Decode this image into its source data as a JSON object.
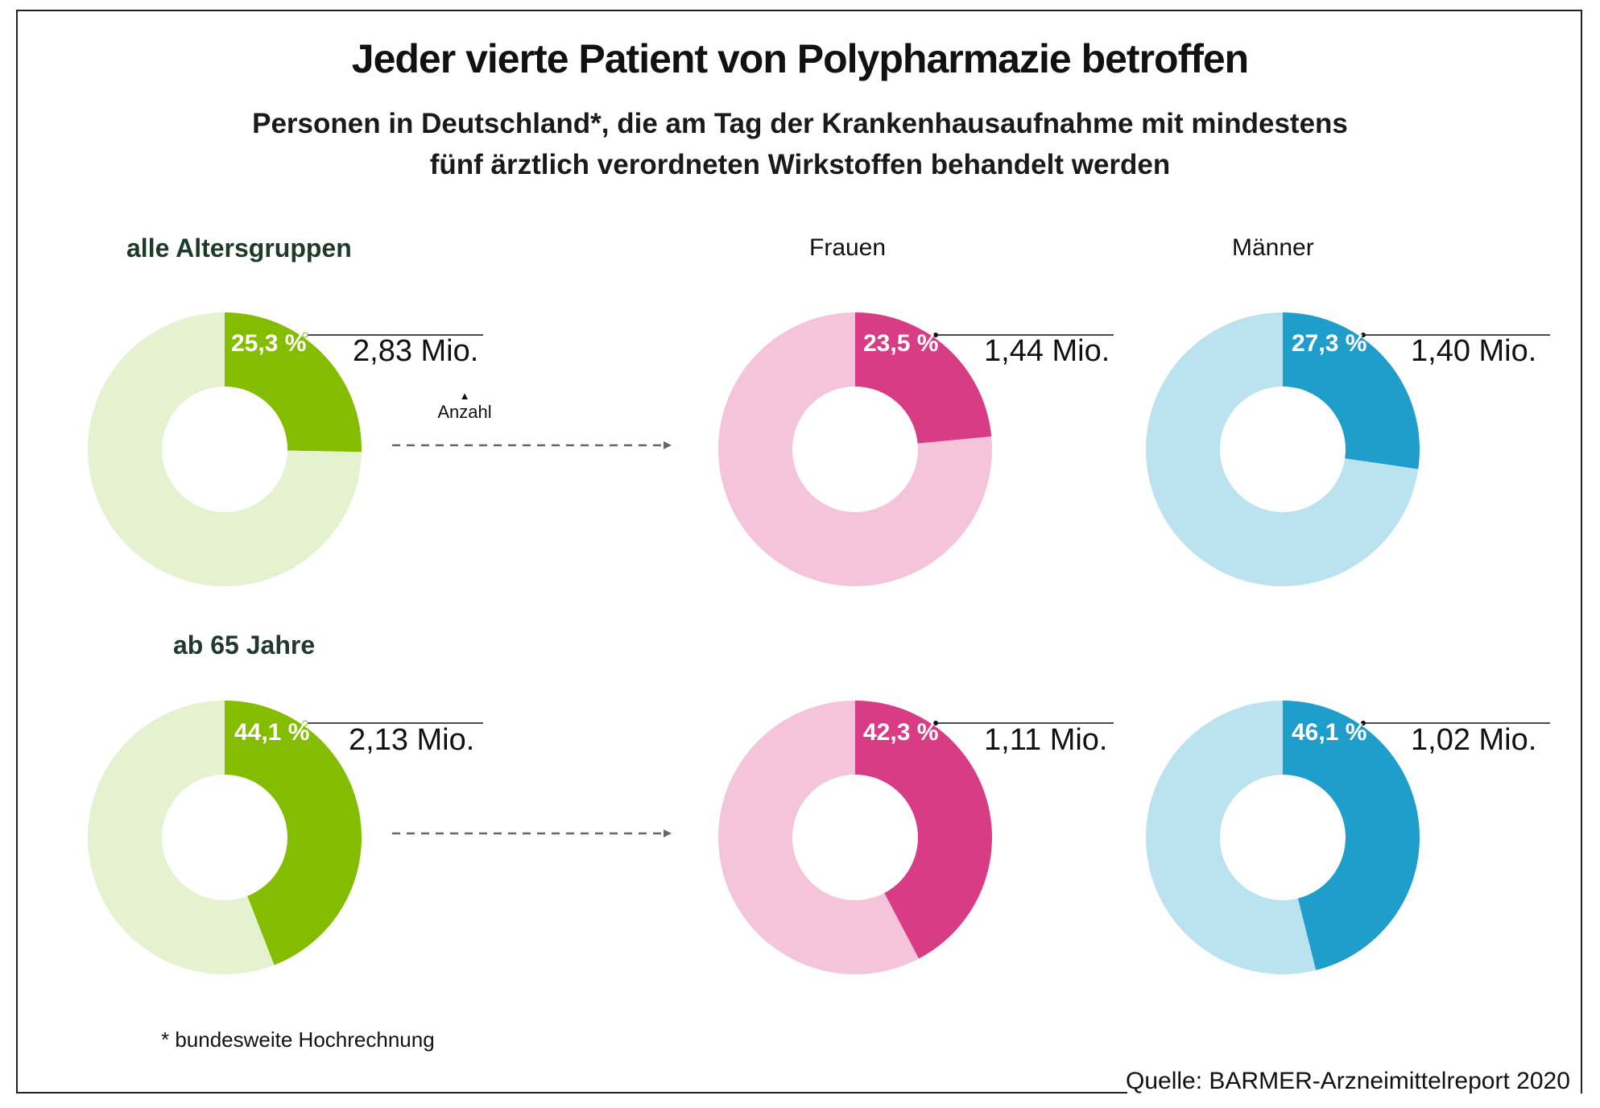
{
  "title": "Jeder vierte Patient von Polypharmazie betroffen",
  "subtitle_line1": "Personen in Deutschland*, die am Tag der Krankenhausaufnahme mit mindestens",
  "subtitle_line2": "fünf ärztlich verordneten Wirkstoffen behandelt werden",
  "footnote": "* bundesweite Hochrechnung",
  "source": "Quelle: BARMER-Arzneimittelreport 2020",
  "anzahl_label": "Anzahl",
  "colors": {
    "green": "#84bd00",
    "green_light": "#e4f2cf",
    "pink": "#d73c85",
    "pink_light": "#f4c4da",
    "blue": "#209ecb",
    "blue_light": "#bae3ef",
    "arrow": "#666666"
  },
  "chart_data": {
    "type": "pie",
    "variant": "donut-grid",
    "title": "Jeder vierte Patient von Polypharmazie betroffen",
    "columns": [
      "",
      "Frauen",
      "Männer"
    ],
    "rows": [
      {
        "label": "alle Altersgruppen",
        "charts": [
          {
            "group": "gesamt",
            "percent": 25.3,
            "percent_label": "25,3 %",
            "count_label": "2,83 Mio.",
            "color": "green"
          },
          {
            "group": "Frauen",
            "percent": 23.5,
            "percent_label": "23,5 %",
            "count_label": "1,44 Mio.",
            "color": "pink"
          },
          {
            "group": "Männer",
            "percent": 27.3,
            "percent_label": "27,3 %",
            "count_label": "1,40 Mio.",
            "color": "blue"
          }
        ]
      },
      {
        "label": "ab 65 Jahre",
        "charts": [
          {
            "group": "gesamt",
            "percent": 44.1,
            "percent_label": "44,1 %",
            "count_label": "2,13 Mio.",
            "color": "green"
          },
          {
            "group": "Frauen",
            "percent": 42.3,
            "percent_label": "42,3 %",
            "count_label": "1,11 Mio.",
            "color": "pink"
          },
          {
            "group": "Männer",
            "percent": 46.1,
            "percent_label": "46,1 %",
            "count_label": "1,02 Mio.",
            "color": "blue"
          }
        ]
      }
    ]
  }
}
